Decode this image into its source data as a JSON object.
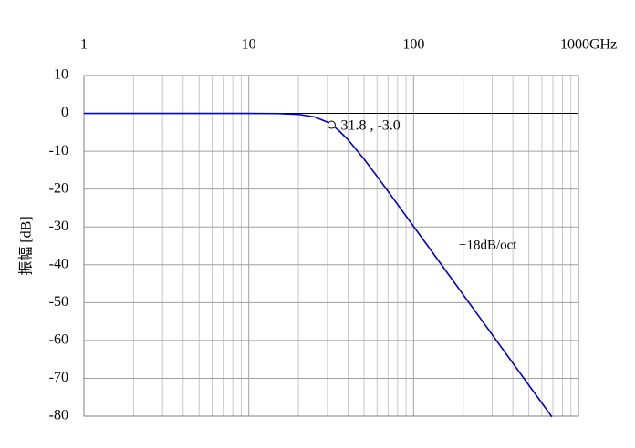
{
  "chart_data": {
    "type": "line",
    "y_label": "振幅 [dB]",
    "x": [
      1,
      2,
      5,
      10,
      15,
      20,
      25,
      30,
      31.8,
      35,
      40,
      50,
      60,
      70,
      80,
      100,
      150,
      200,
      300,
      400,
      500,
      600,
      690
    ],
    "values": [
      0,
      0,
      0,
      0,
      -0.05,
      -0.26,
      -0.92,
      -2.31,
      -3.0,
      -4.44,
      -6.95,
      -12.06,
      -16.64,
      -20.6,
      -24.07,
      -29.86,
      -40.41,
      -47.92,
      -58.48,
      -65.98,
      -71.8,
      -76.54,
      -80.2
    ],
    "color": "#0000cc",
    "x_log": true,
    "xlim": [
      1,
      1000
    ],
    "xticks": [
      1,
      10,
      100,
      {
        "value": 1000,
        "label": "1000GHz"
      }
    ],
    "ylim": [
      -80,
      10
    ],
    "yticks": [
      10,
      0,
      -10,
      -20,
      -30,
      -40,
      -50,
      -60,
      -70,
      -80
    ],
    "grid": true,
    "minor_grid": true,
    "annotations": [
      {
        "text": "31.8 , -3.0",
        "x": 31.8,
        "y": -3.0
      },
      {
        "text": "−18dB/oct"
      }
    ]
  }
}
